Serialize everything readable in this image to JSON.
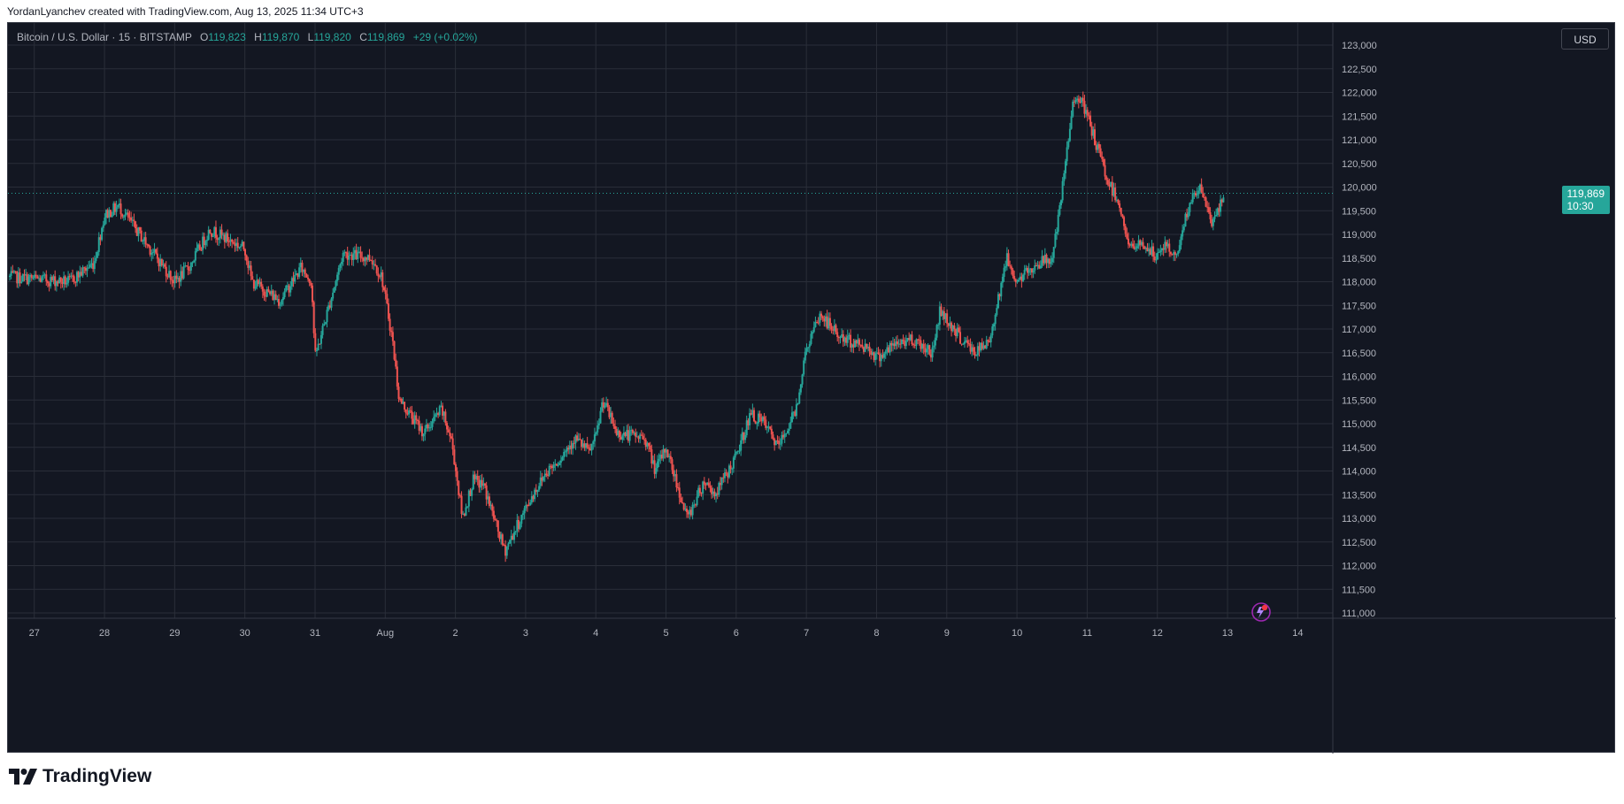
{
  "header": {
    "credit": "YordanLyanchev created with TradingView.com, Aug 13, 2025 11:34 UTC+3"
  },
  "legend": {
    "symbol": "Bitcoin / U.S. Dollar · 15 · BITSTAMP",
    "open_label": "O",
    "open": "119,823",
    "high_label": "H",
    "high": "119,870",
    "low_label": "L",
    "low": "119,820",
    "close_label": "C",
    "close": "119,869",
    "change": "+29 (+0.02%)"
  },
  "toolbar": {
    "currency_label": "USD"
  },
  "price_badge": {
    "price": "119,869",
    "countdown": "10:30"
  },
  "footer": {
    "brand": "TradingView"
  },
  "colors": {
    "background": "#131722",
    "grid": "#2a2e39",
    "up": "#26a69a",
    "down": "#ef5350",
    "axis_text": "#b2b5be"
  },
  "chart_data": {
    "type": "candlestick",
    "title": "",
    "xlabel": "",
    "ylabel": "",
    "ylim": [
      111000,
      123000
    ],
    "y_ticks": [
      111000,
      111500,
      112000,
      112500,
      113000,
      113500,
      114000,
      114500,
      115000,
      115500,
      116000,
      116500,
      117000,
      117500,
      118000,
      118500,
      119000,
      119500,
      120000,
      120500,
      121000,
      121500,
      122000,
      122500,
      123000
    ],
    "y_tick_labels": [
      "111,000",
      "111,500",
      "112,000",
      "112,500",
      "113,000",
      "113,500",
      "114,000",
      "114,500",
      "115,000",
      "115,500",
      "116,000",
      "116,500",
      "117,000",
      "117,500",
      "118,000",
      "118,500",
      "119,000",
      "119,500",
      "120,000",
      "120,500",
      "121,000",
      "121,500",
      "122,000",
      "122,500",
      "123,000"
    ],
    "x_ticks": [
      26.9,
      27.9,
      28.9,
      29.9,
      30.9,
      31.9,
      32.9,
      33.9,
      34.9,
      35.9,
      36.9,
      37.9,
      38.9,
      39.9,
      40.9,
      41.9,
      42.9,
      43.9,
      44.9
    ],
    "x_tick_labels": [
      "27",
      "28",
      "29",
      "30",
      "31",
      "Aug",
      "2",
      "3",
      "4",
      "5",
      "6",
      "7",
      "8",
      "9",
      "10",
      "11",
      "12",
      "13",
      "14"
    ],
    "xlim": [
      26.525,
      45.4
    ],
    "last_price": 119869,
    "series": [
      {
        "x": [
          26.55,
          27.4,
          27.75,
          27.9,
          28.1,
          28.35,
          28.9,
          29.1,
          29.4,
          29.9,
          30.0,
          30.4,
          30.7,
          30.85,
          30.9,
          31.3,
          31.7,
          31.85,
          32.0,
          32.1,
          32.45,
          32.7,
          32.85,
          33.0,
          33.15,
          33.3,
          33.6,
          34.0,
          34.2,
          34.35,
          34.6,
          34.8,
          34.9,
          35.0,
          35.2,
          35.6,
          35.75,
          35.9,
          36.2,
          36.45,
          36.6,
          36.9,
          37.1,
          37.3,
          37.5,
          37.75,
          37.9,
          38.1,
          38.4,
          38.8,
          38.9,
          39.2,
          39.4,
          39.7,
          39.8,
          40.1,
          40.3,
          40.5,
          40.75,
          40.9,
          41.2,
          41.4,
          41.5,
          41.7,
          41.75,
          41.9,
          42.2,
          42.35,
          42.5,
          42.7,
          42.9,
          43.0,
          43.15,
          43.35,
          43.5,
          43.7,
          43.85
        ],
        "y": [
          118100,
          118000,
          118400,
          119400,
          119600,
          119100,
          118000,
          118300,
          119100,
          118700,
          118000,
          117600,
          118300,
          118000,
          116400,
          118600,
          118500,
          118100,
          116800,
          115500,
          114800,
          115300,
          114600,
          113000,
          113800,
          113700,
          112300,
          113500,
          114000,
          114200,
          114700,
          114400,
          114700,
          115500,
          114800,
          114700,
          114000,
          114500,
          113000,
          113800,
          113500,
          114300,
          115200,
          115000,
          114500,
          115300,
          116600,
          117300,
          116800,
          116600,
          116400,
          116700,
          116800,
          116500,
          117400,
          116800,
          116500,
          116700,
          118500,
          118000,
          118400,
          118500,
          119400,
          121800,
          122000,
          121500,
          120100,
          119700,
          118700,
          118800,
          118500,
          118800,
          118500,
          119600,
          120000,
          119200,
          119870
        ]
      }
    ]
  }
}
